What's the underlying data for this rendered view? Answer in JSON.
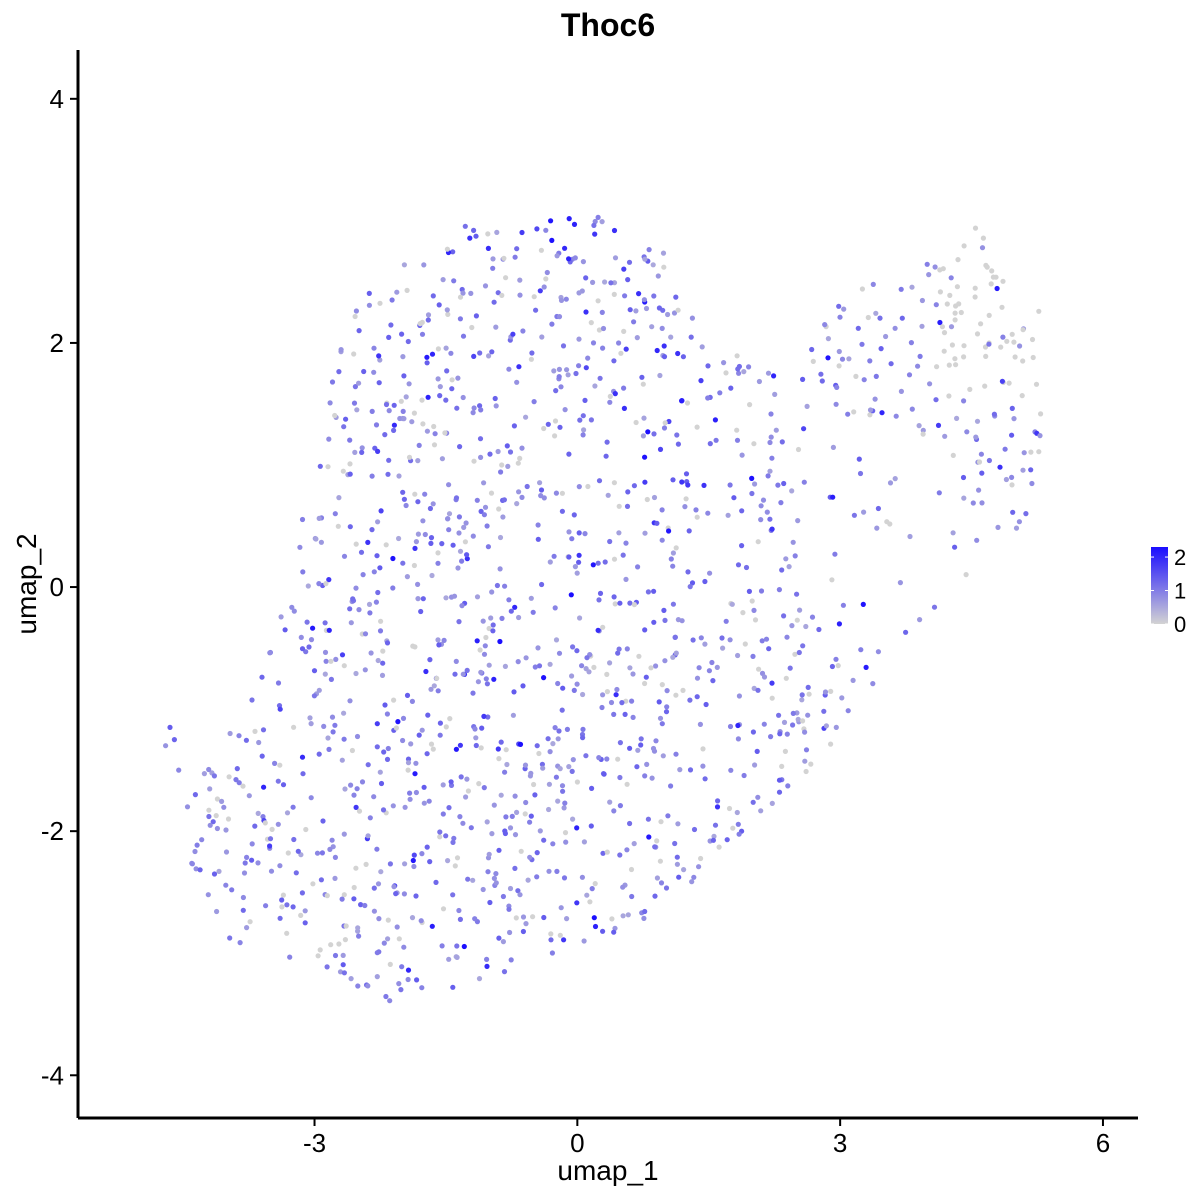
{
  "chart_data": {
    "type": "scatter",
    "title": "Thoc6",
    "xlabel": "umap_1",
    "ylabel": "umap_2",
    "xlim": [
      -5.7,
      6.4
    ],
    "ylim": [
      -4.35,
      4.4
    ],
    "x_ticks": [
      -3,
      0,
      3,
      6
    ],
    "y_ticks": [
      -4,
      -2,
      0,
      2,
      4
    ],
    "x_tick_labels": [
      "-3",
      "0",
      "3",
      "6"
    ],
    "y_tick_labels": [
      "-4",
      "-2",
      "0",
      "2",
      "4"
    ],
    "grid": false,
    "legend": {
      "placement": "right",
      "type": "colorbar",
      "range": [
        0,
        2.3
      ],
      "ticks": [
        0,
        1,
        2
      ],
      "tick_labels": [
        "0",
        "1",
        "2"
      ]
    },
    "colors": {
      "low": "#d3d3d3",
      "high": "#1a0dff"
    },
    "point_count_estimate": 1600,
    "region": {
      "main_polygon": [
        [
          -4.5,
          -2.2
        ],
        [
          -4.3,
          -1.4
        ],
        [
          -3.5,
          -0.5
        ],
        [
          -3.0,
          1.0
        ],
        [
          -2.7,
          2.2
        ],
        [
          -2.1,
          2.7
        ],
        [
          -1.3,
          3.0
        ],
        [
          -0.4,
          3.05
        ],
        [
          0.3,
          3.05
        ],
        [
          1.0,
          2.8
        ],
        [
          1.2,
          2.4
        ],
        [
          1.5,
          1.9
        ],
        [
          2.4,
          1.9
        ],
        [
          3.2,
          2.5
        ],
        [
          4.2,
          2.7
        ],
        [
          4.5,
          3.0
        ],
        [
          5.3,
          2.3
        ],
        [
          5.3,
          1.0
        ],
        [
          5.0,
          0.2
        ],
        [
          4.3,
          0.0
        ],
        [
          3.2,
          -1.0
        ],
        [
          2.4,
          -1.8
        ],
        [
          1.6,
          -2.2
        ],
        [
          0.8,
          -2.8
        ],
        [
          -0.5,
          -3.1
        ],
        [
          -2.0,
          -3.5
        ],
        [
          -3.0,
          -3.1
        ],
        [
          -4.0,
          -2.9
        ]
      ],
      "hole_polygon": [
        [
          2.6,
          1.2
        ],
        [
          3.6,
          1.4
        ],
        [
          4.4,
          1.0
        ],
        [
          4.4,
          0.3
        ],
        [
          3.6,
          -0.6
        ],
        [
          2.6,
          -0.2
        ],
        [
          2.3,
          0.5
        ]
      ],
      "outliers": [
        [
          -4.65,
          -1.15
        ],
        [
          -4.7,
          -1.3
        ],
        [
          -4.6,
          -1.25
        ],
        [
          -4.55,
          -1.5
        ],
        [
          -4.45,
          -1.8
        ]
      ],
      "grey_zones": [
        {
          "x": [
            4.1,
            5.4
          ],
          "y": [
            1.5,
            3.1
          ],
          "p_low": 0.8
        },
        {
          "x": [
            4.2,
            4.8
          ],
          "y": [
            -0.3,
            0.2
          ],
          "p_low": 0.5
        },
        {
          "x": [
            -3.6,
            -2.6
          ],
          "y": [
            -3.0,
            -2.3
          ],
          "p_low": 0.4
        },
        {
          "x": [
            -2.3,
            -1.9
          ],
          "y": [
            2.6,
            3.0
          ],
          "p_low": 0.6
        }
      ],
      "bright_zones": [
        {
          "x": [
            0.4,
            1.6
          ],
          "y": [
            0.8,
            2.0
          ],
          "p_high": 0.4
        },
        {
          "x": [
            -0.8,
            0.6
          ],
          "y": [
            2.6,
            3.05
          ],
          "p_high": 0.35
        }
      ]
    }
  }
}
